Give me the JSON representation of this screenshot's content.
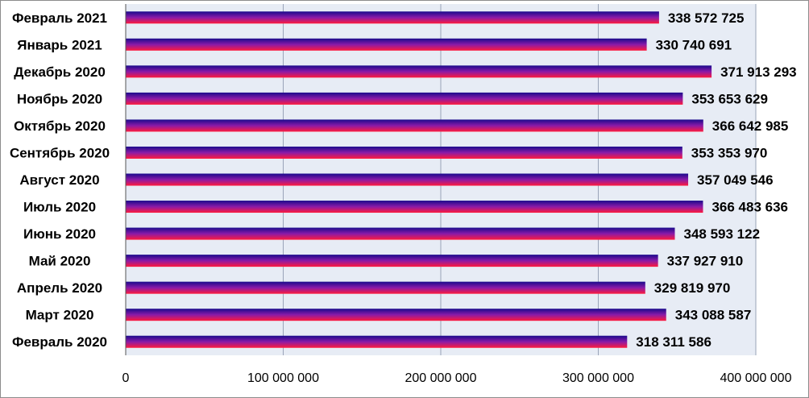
{
  "chart_data": {
    "type": "bar",
    "orientation": "horizontal",
    "categories": [
      "Февраль 2021",
      "Январь 2021",
      "Декабрь 2020",
      "Ноябрь 2020",
      "Октябрь 2020",
      "Сентябрь 2020",
      "Август 2020",
      "Июль 2020",
      "Июнь 2020",
      "Май 2020",
      "Апрель 2020",
      "Март 2020",
      "Февраль 2020"
    ],
    "values": [
      338572725,
      330740691,
      371913293,
      353653629,
      366642985,
      353353970,
      357049546,
      366483636,
      348593122,
      337927910,
      329819970,
      343088587,
      318311586
    ],
    "value_labels": [
      "338 572 725",
      "330 740 691",
      "371 913 293",
      "353 653 629",
      "366 642 985",
      "353 353 970",
      "357 049 546",
      "366 483 636",
      "348 593 122",
      "337 927 910",
      "329 819 970",
      "343 088 587",
      "318 311 586"
    ],
    "x_ticks": [
      0,
      100000000,
      200000000,
      300000000,
      400000000
    ],
    "x_tick_labels": [
      "0",
      "100 000 000",
      "200 000 000",
      "300 000 000",
      "400 000 000"
    ],
    "xlim": [
      0,
      400000000
    ],
    "grid": true,
    "legend": "none",
    "title": "",
    "xlabel": "",
    "ylabel": "",
    "colors": {
      "plot_background": "#e7ecf5",
      "gridline": "#9aa4b8",
      "bar_top": "#1a0a8c",
      "bar_mid": "#8a1aa8",
      "bar_bottom": "#ff1a3c"
    }
  }
}
